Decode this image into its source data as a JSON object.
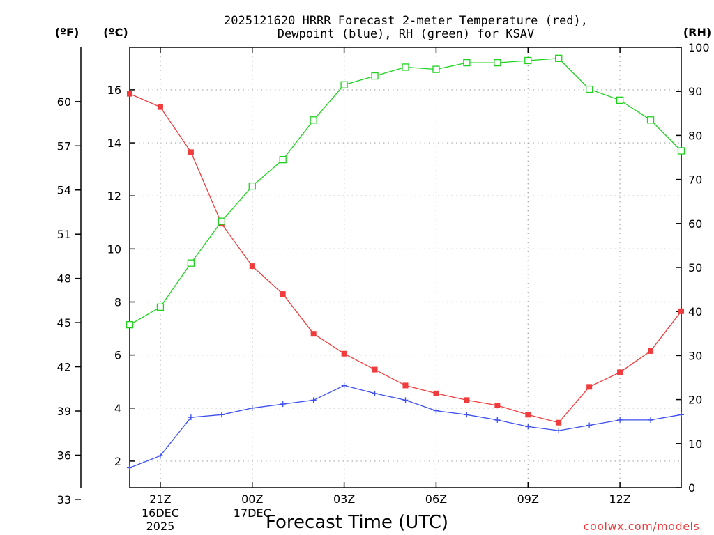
{
  "chart_data": {
    "type": "line",
    "title_line1": "2025121620 HRRR Forecast 2-meter Temperature (red),",
    "title_line2": "Dewpoint (blue), RH (green) for KSAV",
    "unit_f": "(ºF)",
    "unit_c": "(ºC)",
    "unit_rh": "(RH)",
    "xlabel": "Forecast Time (UTC)",
    "credit": "coolwx.com/models",
    "x_ticks": [
      {
        "hour": 1,
        "label": "21Z",
        "sub1": "16DEC",
        "sub2": "2025"
      },
      {
        "hour": 4,
        "label": "00Z",
        "sub1": "17DEC",
        "sub2": ""
      },
      {
        "hour": 7,
        "label": "03Z",
        "sub1": "",
        "sub2": ""
      },
      {
        "hour": 10,
        "label": "06Z",
        "sub1": "",
        "sub2": ""
      },
      {
        "hour": 13,
        "label": "09Z",
        "sub1": "",
        "sub2": ""
      },
      {
        "hour": 16,
        "label": "12Z",
        "sub1": "",
        "sub2": ""
      }
    ],
    "xlim": [
      0,
      18
    ],
    "ylim_c": [
      1.0,
      17.6
    ],
    "ylim_rh": [
      0,
      100
    ],
    "c_ticks": [
      "2",
      "4",
      "6",
      "8",
      "10",
      "12",
      "14",
      "16"
    ],
    "f_ticks": [
      "33",
      "36",
      "39",
      "42",
      "45",
      "48",
      "51",
      "54",
      "57",
      "60"
    ],
    "rh_ticks": [
      "0",
      "10",
      "20",
      "30",
      "40",
      "50",
      "60",
      "70",
      "80",
      "90",
      "100"
    ],
    "hours": [
      0,
      1,
      2,
      3,
      4,
      5,
      6,
      7,
      8,
      9,
      10,
      11,
      12,
      13,
      14,
      15,
      16,
      17,
      18
    ],
    "series": [
      {
        "name": "Temperature",
        "unit": "C",
        "color": "#f03c3c",
        "marker": "filled-square",
        "values": [
          15.85,
          15.35,
          13.65,
          10.95,
          9.35,
          8.3,
          6.8,
          6.05,
          5.45,
          4.85,
          4.55,
          4.3,
          4.1,
          3.75,
          3.45,
          4.8,
          5.35,
          6.15,
          7.65
        ]
      },
      {
        "name": "Dewpoint",
        "unit": "C",
        "color": "#3c4ef0",
        "marker": "plus",
        "values": [
          1.75,
          2.2,
          3.65,
          3.75,
          4.0,
          4.15,
          4.3,
          4.85,
          4.55,
          4.3,
          3.9,
          3.75,
          3.55,
          3.3,
          3.15,
          3.35,
          3.55,
          3.55,
          3.75
        ]
      },
      {
        "name": "RH",
        "unit": "%",
        "color": "#1ed21e",
        "marker": "open-square",
        "values": [
          37,
          41,
          51,
          60.5,
          68.5,
          74.5,
          83.5,
          91.5,
          93.5,
          95.5,
          95,
          96.5,
          96.5,
          97,
          97.5,
          90.5,
          88,
          83.5,
          76.5
        ]
      }
    ]
  }
}
